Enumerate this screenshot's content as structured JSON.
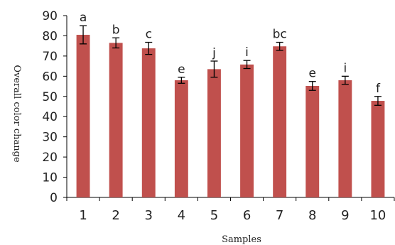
{
  "chart_data": {
    "type": "bar",
    "categories": [
      "1",
      "2",
      "3",
      "4",
      "5",
      "6",
      "7",
      "8",
      "9",
      "10"
    ],
    "values": [
      80.5,
      76.5,
      73.8,
      58,
      63.5,
      65.8,
      74.8,
      55.2,
      58,
      47.8
    ],
    "errors": [
      4.5,
      2.5,
      3.0,
      1.5,
      4.0,
      2.0,
      2.0,
      2.2,
      2.0,
      2.2
    ],
    "significance_labels": [
      "a",
      "b",
      "c",
      "e",
      "j",
      "i",
      "bc",
      "e",
      "i",
      "f"
    ],
    "xlabel": "Samples",
    "ylabel": "Overall color change",
    "ylim": [
      0,
      90
    ],
    "yticks": [
      0,
      10,
      20,
      30,
      40,
      50,
      60,
      70,
      80,
      90
    ],
    "grid": false,
    "colors": {
      "bar": "#c0504d",
      "axis": "#000000",
      "error_bar": "#000000"
    }
  }
}
